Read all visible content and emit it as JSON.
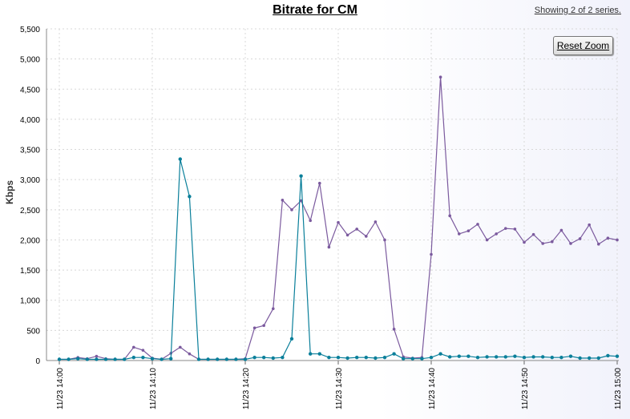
{
  "header": {
    "title": "Bitrate for CM",
    "series_count": "Showing 2 of 2 series."
  },
  "controls": {
    "reset_zoom_label": "Reset Zoom"
  },
  "colors": {
    "purple_series": "#7b5a9e",
    "teal_series": "#0a7f9a"
  },
  "chart_data": {
    "type": "line",
    "title": "Bitrate for CM",
    "xlabel": "",
    "ylabel": "Kbps",
    "ylim": [
      0,
      5500
    ],
    "yticks": [
      0,
      500,
      1000,
      1500,
      2000,
      2500,
      3000,
      3500,
      4000,
      4500,
      5000,
      5500
    ],
    "ytick_labels": [
      "0",
      "500",
      "1,000",
      "1,500",
      "2,000",
      "2,500",
      "3,000",
      "3,500",
      "4,000",
      "4,500",
      "5,000",
      "5,500"
    ],
    "xlim": [
      "11/23 14:00",
      "11/23 15:00"
    ],
    "xtick_labels": [
      "11/23 14:00",
      "11/23 14:10",
      "11/23 14:20",
      "11/23 14:30",
      "11/23 14:40",
      "11/23 14:50",
      "11/23 15:00"
    ],
    "grid": true,
    "x": [
      "11/23 14:00",
      "11/23 14:01",
      "11/23 14:02",
      "11/23 14:03",
      "11/23 14:04",
      "11/23 14:05",
      "11/23 14:06",
      "11/23 14:07",
      "11/23 14:08",
      "11/23 14:09",
      "11/23 14:10",
      "11/23 14:11",
      "11/23 14:12",
      "11/23 14:13",
      "11/23 14:14",
      "11/23 14:15",
      "11/23 14:16",
      "11/23 14:17",
      "11/23 14:18",
      "11/23 14:19",
      "11/23 14:20",
      "11/23 14:21",
      "11/23 14:22",
      "11/23 14:23",
      "11/23 14:24",
      "11/23 14:25",
      "11/23 14:26",
      "11/23 14:27",
      "11/23 14:28",
      "11/23 14:29",
      "11/23 14:30",
      "11/23 14:31",
      "11/23 14:32",
      "11/23 14:33",
      "11/23 14:34",
      "11/23 14:35",
      "11/23 14:36",
      "11/23 14:37",
      "11/23 14:38",
      "11/23 14:39",
      "11/23 14:40",
      "11/23 14:41",
      "11/23 14:42",
      "11/23 14:43",
      "11/23 14:44",
      "11/23 14:45",
      "11/23 14:46",
      "11/23 14:47",
      "11/23 14:48",
      "11/23 14:49",
      "11/23 14:50",
      "11/23 14:51",
      "11/23 14:52",
      "11/23 14:53",
      "11/23 14:54",
      "11/23 14:55",
      "11/23 14:56",
      "11/23 14:57",
      "11/23 14:58",
      "11/23 14:59",
      "11/23 15:00"
    ],
    "series": [
      {
        "color": "#7b5a9e",
        "values": [
          20,
          20,
          50,
          30,
          70,
          30,
          20,
          20,
          220,
          170,
          40,
          20,
          120,
          220,
          110,
          20,
          20,
          20,
          20,
          20,
          30,
          540,
          580,
          860,
          2660,
          2500,
          2650,
          2320,
          2940,
          1880,
          2290,
          2080,
          2180,
          2060,
          2300,
          2000,
          520,
          60,
          40,
          50,
          1760,
          4700,
          2400,
          2100,
          2150,
          2260,
          2000,
          2100,
          2190,
          2180,
          1960,
          2090,
          1940,
          1970,
          2160,
          1940,
          2020,
          2250,
          1930,
          2030,
          2000
        ]
      },
      {
        "color": "#0a7f9a",
        "values": [
          20,
          20,
          30,
          20,
          20,
          20,
          20,
          20,
          50,
          50,
          30,
          20,
          30,
          3340,
          2720,
          20,
          20,
          20,
          20,
          20,
          20,
          50,
          50,
          40,
          50,
          360,
          3060,
          110,
          110,
          50,
          50,
          40,
          50,
          50,
          40,
          50,
          110,
          30,
          30,
          30,
          50,
          110,
          60,
          70,
          70,
          50,
          60,
          60,
          60,
          70,
          50,
          60,
          60,
          50,
          50,
          70,
          40,
          40,
          40,
          80,
          70
        ]
      }
    ]
  }
}
